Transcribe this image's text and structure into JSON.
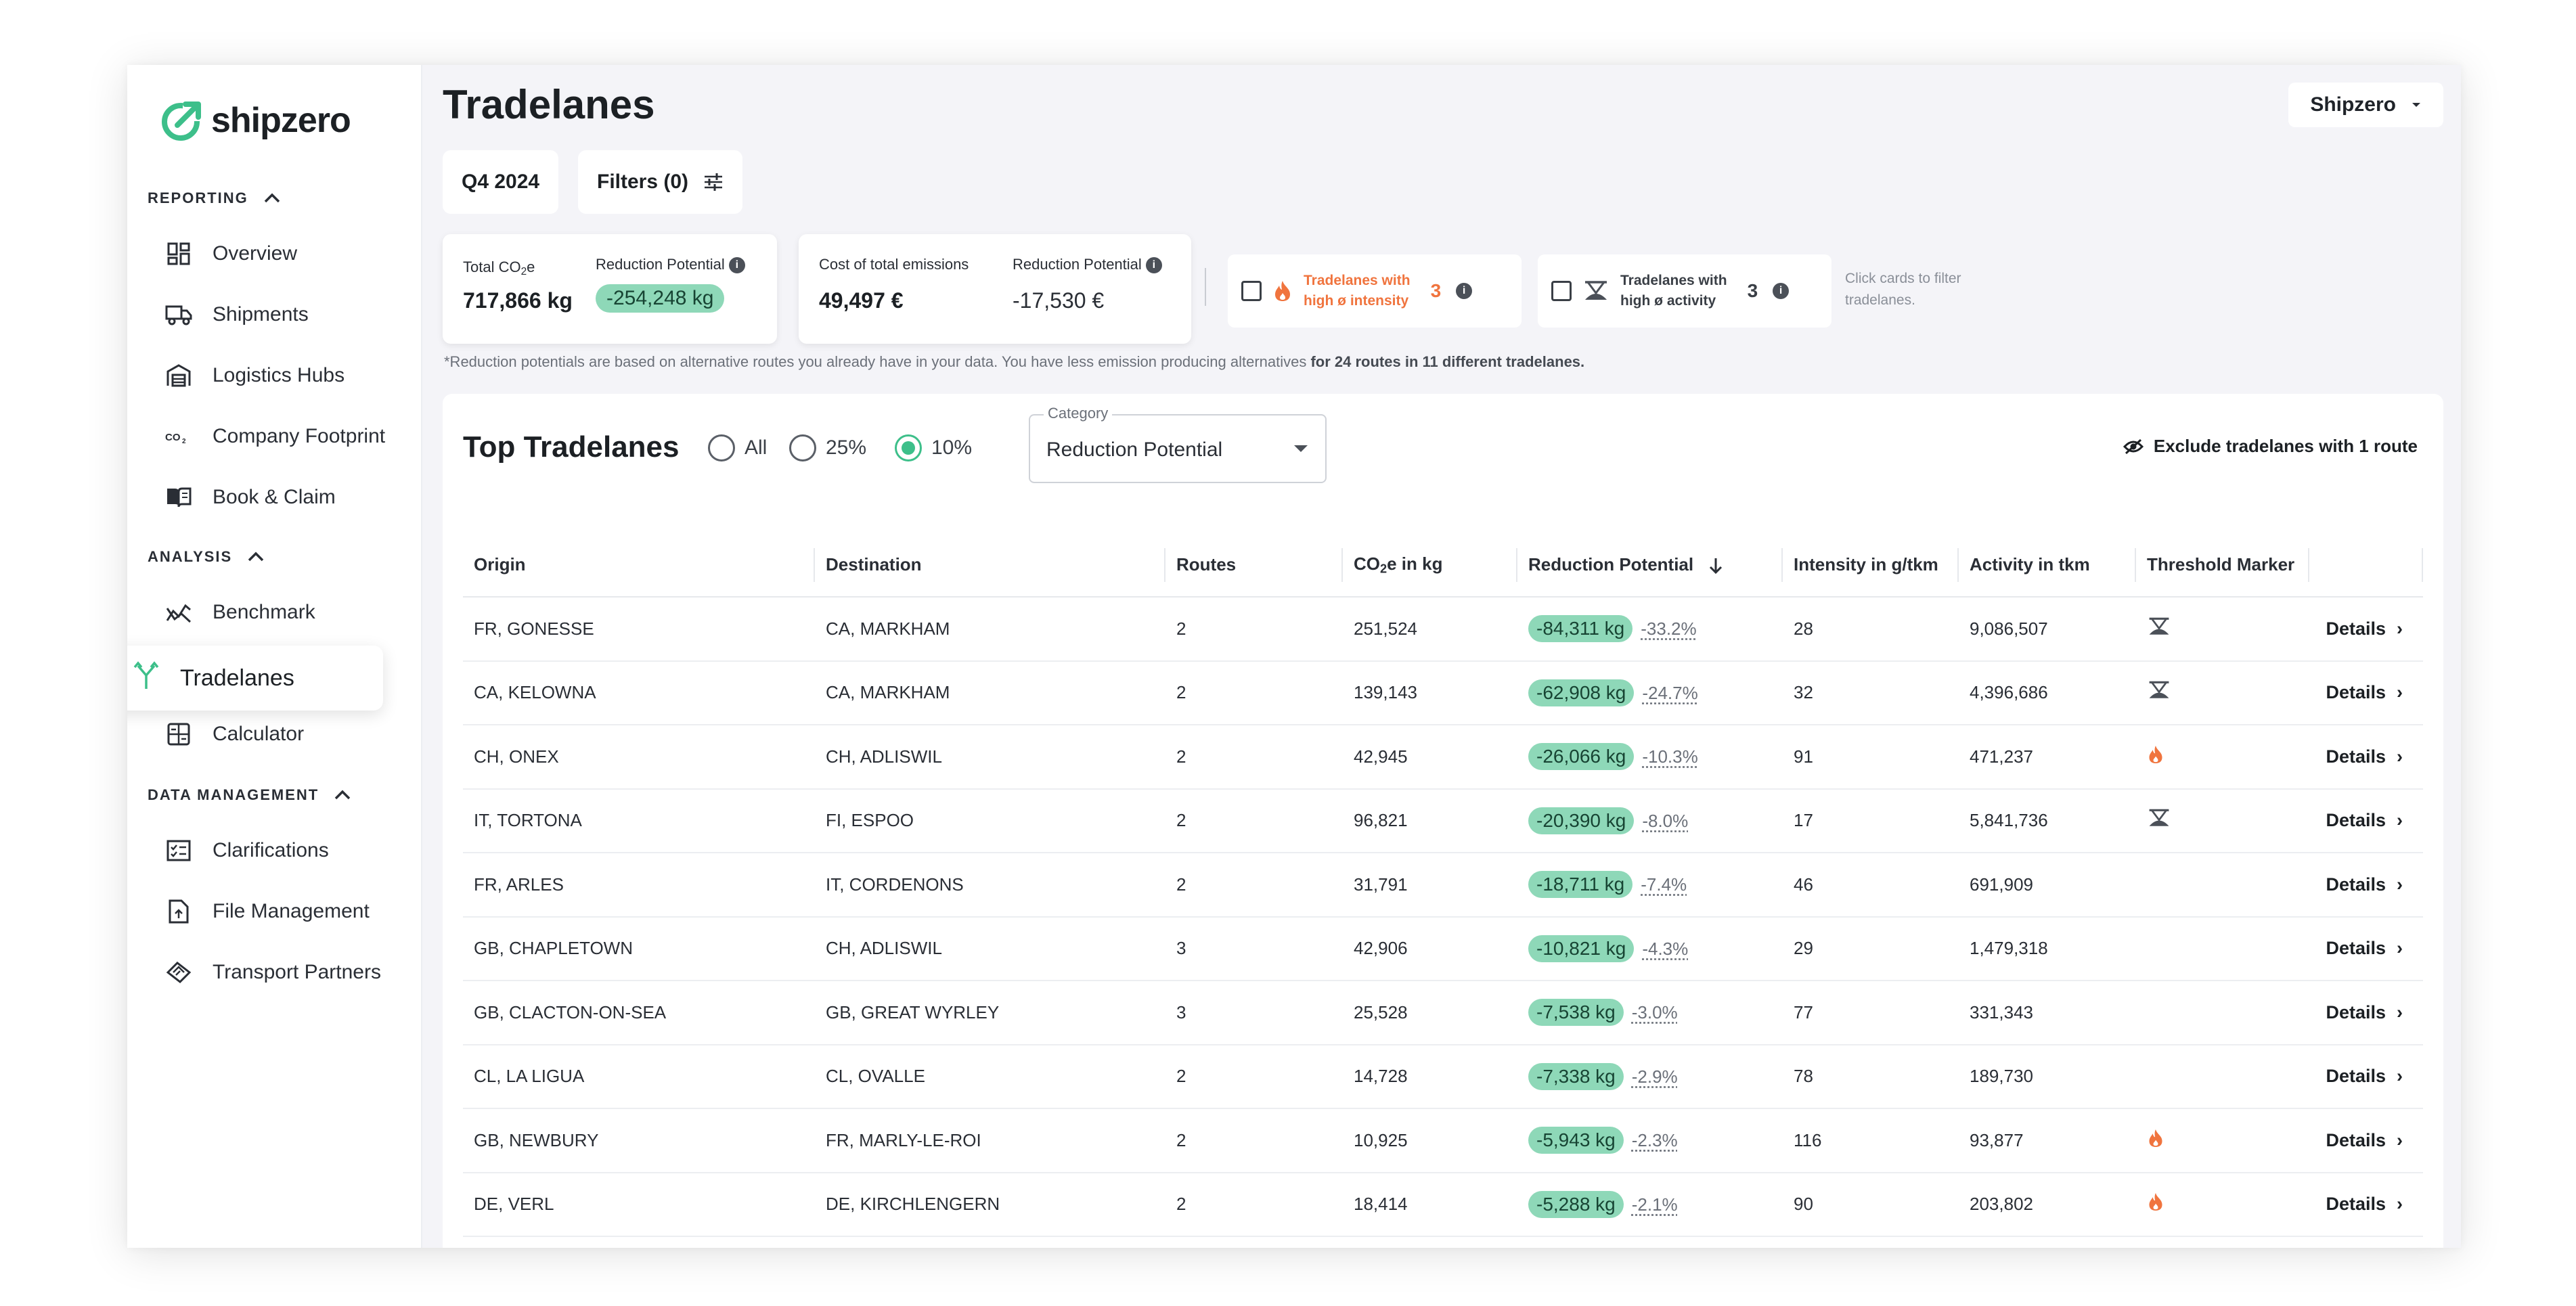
{
  "brand": {
    "name": "shipzero",
    "accent": "#3dbf8a"
  },
  "page": {
    "title": "Tradelanes"
  },
  "account": {
    "label": "Shipzero"
  },
  "sidebar": {
    "sections": [
      {
        "label": "REPORTING",
        "items": [
          {
            "label": "Overview",
            "icon": "dashboard-icon"
          },
          {
            "label": "Shipments",
            "icon": "truck-icon"
          },
          {
            "label": "Logistics Hubs",
            "icon": "warehouse-icon"
          },
          {
            "label": "Company Footprint",
            "icon": "co2-icon"
          },
          {
            "label": "Book & Claim",
            "icon": "book-icon"
          }
        ]
      },
      {
        "label": "ANALYSIS",
        "items": [
          {
            "label": "Benchmark",
            "icon": "benchmark-icon"
          },
          {
            "label": "Tradelanes",
            "icon": "tradelanes-icon",
            "active": true
          },
          {
            "label": "Calculator",
            "icon": "calculator-icon"
          }
        ]
      },
      {
        "label": "DATA MANAGEMENT",
        "items": [
          {
            "label": "Clarifications",
            "icon": "checklist-icon"
          },
          {
            "label": "File Management",
            "icon": "file-upload-icon"
          },
          {
            "label": "Transport Partners",
            "icon": "handshake-icon"
          }
        ]
      }
    ]
  },
  "toolbar": {
    "period": "Q4 2024",
    "filters": "Filters (0)"
  },
  "summary": {
    "card1": {
      "total_label": "Total CO",
      "total_label_sub": "2",
      "total_label_suffix": "e",
      "total_value": "717,866 kg",
      "rp_label": "Reduction Potential",
      "rp_value": "-254,248 kg"
    },
    "card2": {
      "cost_label": "Cost of total emissions",
      "cost_value": "49,497 €",
      "rp_label": "Reduction Potential",
      "rp_value": "-17,530 €"
    },
    "filter_intensity": {
      "line1": "Tradelanes with",
      "line2": "high ø intensity",
      "count": "3",
      "color": "#f0743e"
    },
    "filter_activity": {
      "line1": "Tradelanes with",
      "line2": "high ø activity",
      "count": "3"
    },
    "hint": "Click cards to filter tradelanes."
  },
  "footnote": {
    "text": "*Reduction potentials are based on alternative routes you already have in your data. You have less emission producing alternatives ",
    "bold": "for 24 routes in 11 different tradelanes."
  },
  "panel": {
    "title": "Top Tradelanes",
    "radios": [
      {
        "label": "All",
        "selected": false
      },
      {
        "label": "25%",
        "selected": false
      },
      {
        "label": "10%",
        "selected": true
      }
    ],
    "category": {
      "legend": "Category",
      "value": "Reduction Potential"
    },
    "exclude": "Exclude tradelanes with 1 route"
  },
  "table": {
    "headers": {
      "origin": "Origin",
      "destination": "Destination",
      "routes": "Routes",
      "co2_prefix": "CO",
      "co2_sub": "2",
      "co2_suffix": "e in kg",
      "rp": "Reduction Potential",
      "intensity": "Intensity in g/tkm",
      "activity": "Activity in tkm",
      "threshold": "Threshold Marker"
    },
    "details_label": "Details",
    "rows": [
      {
        "origin": "FR, GONESSE",
        "destination": "CA, MARKHAM",
        "routes": "2",
        "co2": "251,524",
        "rp": "-84,311 kg",
        "pct": "-33.2%",
        "intensity": "28",
        "activity": "9,086,507",
        "marker": "activity"
      },
      {
        "origin": "CA, KELOWNA",
        "destination": "CA, MARKHAM",
        "routes": "2",
        "co2": "139,143",
        "rp": "-62,908 kg",
        "pct": "-24.7%",
        "intensity": "32",
        "activity": "4,396,686",
        "marker": "activity"
      },
      {
        "origin": "CH, ONEX",
        "destination": "CH, ADLISWIL",
        "routes": "2",
        "co2": "42,945",
        "rp": "-26,066 kg",
        "pct": "-10.3%",
        "intensity": "91",
        "activity": "471,237",
        "marker": "intensity"
      },
      {
        "origin": "IT, TORTONA",
        "destination": "FI, ESPOO",
        "routes": "2",
        "co2": "96,821",
        "rp": "-20,390 kg",
        "pct": "-8.0%",
        "intensity": "17",
        "activity": "5,841,736",
        "marker": "activity"
      },
      {
        "origin": "FR, ARLES",
        "destination": "IT, CORDENONS",
        "routes": "2",
        "co2": "31,791",
        "rp": "-18,711 kg",
        "pct": "-7.4%",
        "intensity": "46",
        "activity": "691,909",
        "marker": ""
      },
      {
        "origin": "GB, CHAPLETOWN",
        "destination": "CH, ADLISWIL",
        "routes": "3",
        "co2": "42,906",
        "rp": "-10,821 kg",
        "pct": "-4.3%",
        "intensity": "29",
        "activity": "1,479,318",
        "marker": ""
      },
      {
        "origin": "GB, CLACTON-ON-SEA",
        "destination": "GB, GREAT WYRLEY",
        "routes": "3",
        "co2": "25,528",
        "rp": "-7,538 kg",
        "pct": "-3.0%",
        "intensity": "77",
        "activity": "331,343",
        "marker": ""
      },
      {
        "origin": "CL, LA LIGUA",
        "destination": "CL, OVALLE",
        "routes": "2",
        "co2": "14,728",
        "rp": "-7,338 kg",
        "pct": "-2.9%",
        "intensity": "78",
        "activity": "189,730",
        "marker": ""
      },
      {
        "origin": "GB, NEWBURY",
        "destination": "FR, MARLY-LE-ROI",
        "routes": "2",
        "co2": "10,925",
        "rp": "-5,943 kg",
        "pct": "-2.3%",
        "intensity": "116",
        "activity": "93,877",
        "marker": "intensity"
      },
      {
        "origin": "DE, VERL",
        "destination": "DE, KIRCHLENGERN",
        "routes": "2",
        "co2": "18,414",
        "rp": "-5,288 kg",
        "pct": "-2.1%",
        "intensity": "90",
        "activity": "203,802",
        "marker": "intensity"
      }
    ]
  }
}
